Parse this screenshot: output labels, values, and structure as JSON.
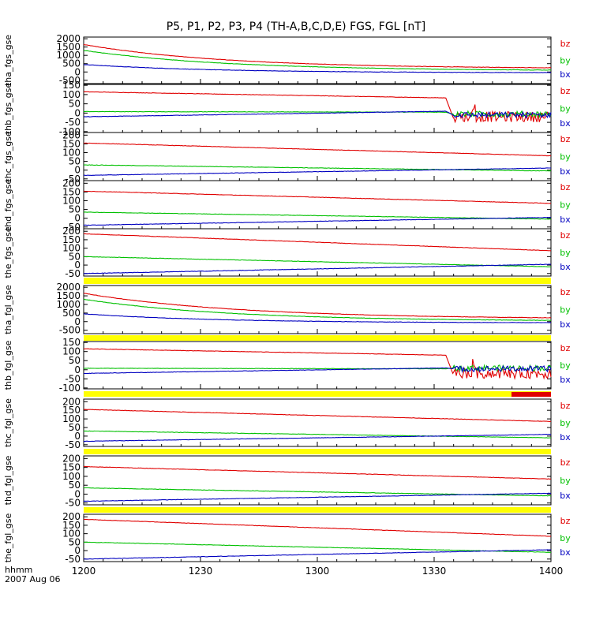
{
  "title": "P5, P1, P2, P3, P4 (TH-A,B,C,D,E) FGS, FGL [nT]",
  "footer": {
    "time_format": "hhmm",
    "date": "2007 Aug 06"
  },
  "colors": {
    "bz": "#e00000",
    "by": "#00c000",
    "bx": "#0000c0",
    "yellow": "#ffff00",
    "red": "#e00000"
  },
  "chart_data": {
    "type": "line",
    "xaxis": {
      "range": [
        "1200",
        "1400"
      ],
      "ticks": [
        "1200",
        "1230",
        "1300",
        "1330",
        "1400"
      ]
    },
    "panels": [
      {
        "ylabel": "tha_fgs_gse",
        "ylim": [
          -700,
          2100
        ],
        "yticks": [
          "2000",
          "1500",
          "1000",
          "500",
          "0",
          "-500"
        ],
        "series": [
          {
            "name": "bz",
            "shape": "decay",
            "start": 1650,
            "end": 200,
            "rate": 3.3
          },
          {
            "name": "by",
            "shape": "decay",
            "start": 1300,
            "end": 70,
            "rate": 3.3
          },
          {
            "name": "bx",
            "shape": "decay",
            "start": 450,
            "end": -50,
            "rate": 3.6
          }
        ]
      },
      {
        "ylabel": "thb_fgs_gse",
        "ylim": [
          -105,
          155
        ],
        "yticks": [
          "150",
          "100",
          "50",
          "0",
          "-50",
          "-100"
        ],
        "series": [
          {
            "name": "bz",
            "shape": "burst",
            "pre_start": 115,
            "pre_end": 82,
            "post": -20
          },
          {
            "name": "by",
            "shape": "burst",
            "pre_start": 8,
            "pre_end": 5,
            "post": -5
          },
          {
            "name": "bx",
            "shape": "burst",
            "pre_start": -20,
            "pre_end": 10,
            "post": -10
          }
        ]
      },
      {
        "ylabel": "thc_fgs_gse",
        "ylim": [
          -60,
          215
        ],
        "yticks": [
          "200",
          "150",
          "100",
          "50",
          "0",
          "-50"
        ],
        "series": [
          {
            "name": "bz",
            "shape": "linear",
            "start": 155,
            "end": 82
          },
          {
            "name": "by",
            "shape": "linear",
            "start": 30,
            "end": -5
          },
          {
            "name": "bx",
            "shape": "linear",
            "start": -30,
            "end": 12
          }
        ]
      },
      {
        "ylabel": "thd_fgs_gse",
        "ylim": [
          -60,
          215
        ],
        "yticks": [
          "200",
          "150",
          "100",
          "50",
          "0",
          "-50"
        ],
        "series": [
          {
            "name": "bz",
            "shape": "linear",
            "start": 155,
            "end": 85
          },
          {
            "name": "by",
            "shape": "linear",
            "start": 35,
            "end": -5
          },
          {
            "name": "bx",
            "shape": "linear",
            "start": -40,
            "end": 5
          }
        ]
      },
      {
        "ylabel": "the_fgs_gse",
        "ylim": [
          -65,
          215
        ],
        "yticks": [
          "200",
          "150",
          "100",
          "50",
          "0",
          "-50"
        ],
        "series": [
          {
            "name": "bz",
            "shape": "linear",
            "start": 185,
            "end": 85
          },
          {
            "name": "by",
            "shape": "linear",
            "start": 50,
            "end": -10
          },
          {
            "name": "bx",
            "shape": "linear",
            "start": -50,
            "end": 5
          }
        ]
      },
      {
        "ylabel": "tha_fgl_gse",
        "ylim": [
          -700,
          2100
        ],
        "yticks": [
          "2000",
          "1500",
          "1000",
          "500",
          "0",
          "-500"
        ],
        "series": [
          {
            "name": "bz",
            "shape": "decay",
            "start": 1650,
            "end": 150,
            "rate": 3.0
          },
          {
            "name": "by",
            "shape": "decay",
            "start": 1300,
            "end": 20,
            "rate": 3.2
          },
          {
            "name": "bx",
            "shape": "decay",
            "start": 450,
            "end": -80,
            "rate": 3.4
          }
        ]
      },
      {
        "ylabel": "thb_fgl_gse",
        "ylim": [
          -105,
          155
        ],
        "yticks": [
          "150",
          "100",
          "50",
          "0",
          "-50",
          "-100"
        ],
        "series": [
          {
            "name": "bz",
            "shape": "burst",
            "pre_start": 115,
            "pre_end": 80,
            "post": -20
          },
          {
            "name": "by",
            "shape": "burst",
            "pre_start": 8,
            "pre_end": 5,
            "post": 10
          },
          {
            "name": "bx",
            "shape": "burst",
            "pre_start": -20,
            "pre_end": 10,
            "post": 5
          }
        ]
      },
      {
        "ylabel": "thc_fgl_gse",
        "ylim": [
          -60,
          215
        ],
        "yticks": [
          "200",
          "150",
          "100",
          "50",
          "0",
          "-50"
        ],
        "series": [
          {
            "name": "bz",
            "shape": "linear",
            "start": 155,
            "end": 85
          },
          {
            "name": "by",
            "shape": "linear",
            "start": 30,
            "end": -10
          },
          {
            "name": "bx",
            "shape": "linear",
            "start": -30,
            "end": 10
          }
        ]
      },
      {
        "ylabel": "thd_fgl_gse",
        "ylim": [
          -60,
          215
        ],
        "yticks": [
          "200",
          "150",
          "100",
          "50",
          "0",
          "-50"
        ],
        "series": [
          {
            "name": "bz",
            "shape": "linear",
            "start": 155,
            "end": 85
          },
          {
            "name": "by",
            "shape": "linear",
            "start": 35,
            "end": -10
          },
          {
            "name": "bx",
            "shape": "linear",
            "start": -40,
            "end": 5
          }
        ]
      },
      {
        "ylabel": "the_fgl_gse",
        "ylim": [
          -65,
          215
        ],
        "yticks": [
          "200",
          "150",
          "100",
          "50",
          "0",
          "-50"
        ],
        "series": [
          {
            "name": "bz",
            "shape": "linear",
            "start": 185,
            "end": 85
          },
          {
            "name": "by",
            "shape": "linear",
            "start": 50,
            "end": -10
          },
          {
            "name": "bx",
            "shape": "linear",
            "start": -50,
            "end": 5
          }
        ]
      }
    ]
  }
}
